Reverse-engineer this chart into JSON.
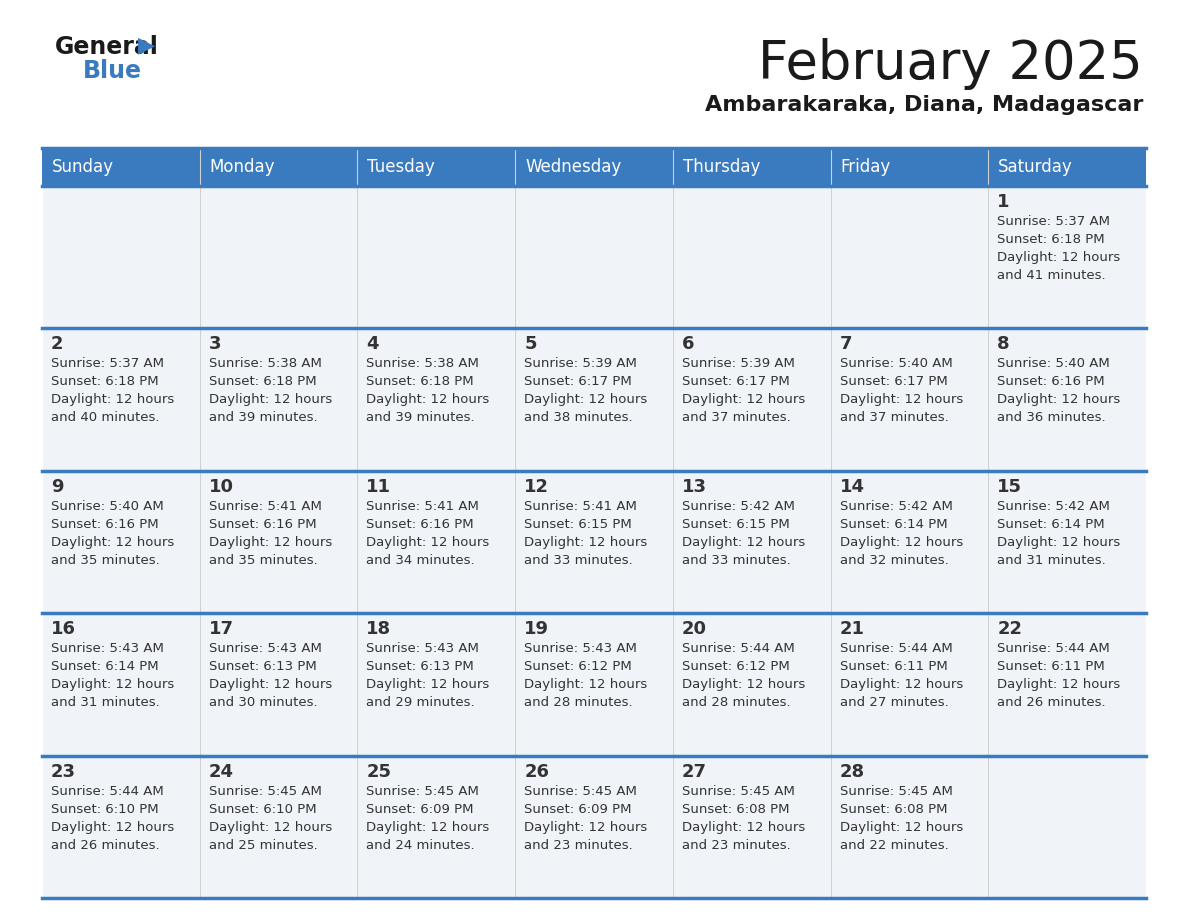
{
  "title": "February 2025",
  "subtitle": "Ambarakaraka, Diana, Madagascar",
  "header_bg": "#3a7abf",
  "header_text_color": "#ffffff",
  "cell_bg": "#f0f4f8",
  "separator_color": "#3a7abf",
  "text_color": "#333333",
  "day_names": [
    "Sunday",
    "Monday",
    "Tuesday",
    "Wednesday",
    "Thursday",
    "Friday",
    "Saturday"
  ],
  "days": [
    {
      "day": 1,
      "col": 6,
      "row": 0,
      "sunrise": "5:37 AM",
      "sunset": "6:18 PM",
      "daylight_h": "Daylight: 12 hours",
      "daylight_m": "and 41 minutes."
    },
    {
      "day": 2,
      "col": 0,
      "row": 1,
      "sunrise": "5:37 AM",
      "sunset": "6:18 PM",
      "daylight_h": "Daylight: 12 hours",
      "daylight_m": "and 40 minutes."
    },
    {
      "day": 3,
      "col": 1,
      "row": 1,
      "sunrise": "5:38 AM",
      "sunset": "6:18 PM",
      "daylight_h": "Daylight: 12 hours",
      "daylight_m": "and 39 minutes."
    },
    {
      "day": 4,
      "col": 2,
      "row": 1,
      "sunrise": "5:38 AM",
      "sunset": "6:18 PM",
      "daylight_h": "Daylight: 12 hours",
      "daylight_m": "and 39 minutes."
    },
    {
      "day": 5,
      "col": 3,
      "row": 1,
      "sunrise": "5:39 AM",
      "sunset": "6:17 PM",
      "daylight_h": "Daylight: 12 hours",
      "daylight_m": "and 38 minutes."
    },
    {
      "day": 6,
      "col": 4,
      "row": 1,
      "sunrise": "5:39 AM",
      "sunset": "6:17 PM",
      "daylight_h": "Daylight: 12 hours",
      "daylight_m": "and 37 minutes."
    },
    {
      "day": 7,
      "col": 5,
      "row": 1,
      "sunrise": "5:40 AM",
      "sunset": "6:17 PM",
      "daylight_h": "Daylight: 12 hours",
      "daylight_m": "and 37 minutes."
    },
    {
      "day": 8,
      "col": 6,
      "row": 1,
      "sunrise": "5:40 AM",
      "sunset": "6:16 PM",
      "daylight_h": "Daylight: 12 hours",
      "daylight_m": "and 36 minutes."
    },
    {
      "day": 9,
      "col": 0,
      "row": 2,
      "sunrise": "5:40 AM",
      "sunset": "6:16 PM",
      "daylight_h": "Daylight: 12 hours",
      "daylight_m": "and 35 minutes."
    },
    {
      "day": 10,
      "col": 1,
      "row": 2,
      "sunrise": "5:41 AM",
      "sunset": "6:16 PM",
      "daylight_h": "Daylight: 12 hours",
      "daylight_m": "and 35 minutes."
    },
    {
      "day": 11,
      "col": 2,
      "row": 2,
      "sunrise": "5:41 AM",
      "sunset": "6:16 PM",
      "daylight_h": "Daylight: 12 hours",
      "daylight_m": "and 34 minutes."
    },
    {
      "day": 12,
      "col": 3,
      "row": 2,
      "sunrise": "5:41 AM",
      "sunset": "6:15 PM",
      "daylight_h": "Daylight: 12 hours",
      "daylight_m": "and 33 minutes."
    },
    {
      "day": 13,
      "col": 4,
      "row": 2,
      "sunrise": "5:42 AM",
      "sunset": "6:15 PM",
      "daylight_h": "Daylight: 12 hours",
      "daylight_m": "and 33 minutes."
    },
    {
      "day": 14,
      "col": 5,
      "row": 2,
      "sunrise": "5:42 AM",
      "sunset": "6:14 PM",
      "daylight_h": "Daylight: 12 hours",
      "daylight_m": "and 32 minutes."
    },
    {
      "day": 15,
      "col": 6,
      "row": 2,
      "sunrise": "5:42 AM",
      "sunset": "6:14 PM",
      "daylight_h": "Daylight: 12 hours",
      "daylight_m": "and 31 minutes."
    },
    {
      "day": 16,
      "col": 0,
      "row": 3,
      "sunrise": "5:43 AM",
      "sunset": "6:14 PM",
      "daylight_h": "Daylight: 12 hours",
      "daylight_m": "and 31 minutes."
    },
    {
      "day": 17,
      "col": 1,
      "row": 3,
      "sunrise": "5:43 AM",
      "sunset": "6:13 PM",
      "daylight_h": "Daylight: 12 hours",
      "daylight_m": "and 30 minutes."
    },
    {
      "day": 18,
      "col": 2,
      "row": 3,
      "sunrise": "5:43 AM",
      "sunset": "6:13 PM",
      "daylight_h": "Daylight: 12 hours",
      "daylight_m": "and 29 minutes."
    },
    {
      "day": 19,
      "col": 3,
      "row": 3,
      "sunrise": "5:43 AM",
      "sunset": "6:12 PM",
      "daylight_h": "Daylight: 12 hours",
      "daylight_m": "and 28 minutes."
    },
    {
      "day": 20,
      "col": 4,
      "row": 3,
      "sunrise": "5:44 AM",
      "sunset": "6:12 PM",
      "daylight_h": "Daylight: 12 hours",
      "daylight_m": "and 28 minutes."
    },
    {
      "day": 21,
      "col": 5,
      "row": 3,
      "sunrise": "5:44 AM",
      "sunset": "6:11 PM",
      "daylight_h": "Daylight: 12 hours",
      "daylight_m": "and 27 minutes."
    },
    {
      "day": 22,
      "col": 6,
      "row": 3,
      "sunrise": "5:44 AM",
      "sunset": "6:11 PM",
      "daylight_h": "Daylight: 12 hours",
      "daylight_m": "and 26 minutes."
    },
    {
      "day": 23,
      "col": 0,
      "row": 4,
      "sunrise": "5:44 AM",
      "sunset": "6:10 PM",
      "daylight_h": "Daylight: 12 hours",
      "daylight_m": "and 26 minutes."
    },
    {
      "day": 24,
      "col": 1,
      "row": 4,
      "sunrise": "5:45 AM",
      "sunset": "6:10 PM",
      "daylight_h": "Daylight: 12 hours",
      "daylight_m": "and 25 minutes."
    },
    {
      "day": 25,
      "col": 2,
      "row": 4,
      "sunrise": "5:45 AM",
      "sunset": "6:09 PM",
      "daylight_h": "Daylight: 12 hours",
      "daylight_m": "and 24 minutes."
    },
    {
      "day": 26,
      "col": 3,
      "row": 4,
      "sunrise": "5:45 AM",
      "sunset": "6:09 PM",
      "daylight_h": "Daylight: 12 hours",
      "daylight_m": "and 23 minutes."
    },
    {
      "day": 27,
      "col": 4,
      "row": 4,
      "sunrise": "5:45 AM",
      "sunset": "6:08 PM",
      "daylight_h": "Daylight: 12 hours",
      "daylight_m": "and 23 minutes."
    },
    {
      "day": 28,
      "col": 5,
      "row": 4,
      "sunrise": "5:45 AM",
      "sunset": "6:08 PM",
      "daylight_h": "Daylight: 12 hours",
      "daylight_m": "and 22 minutes."
    }
  ],
  "num_rows": 5,
  "num_cols": 7
}
